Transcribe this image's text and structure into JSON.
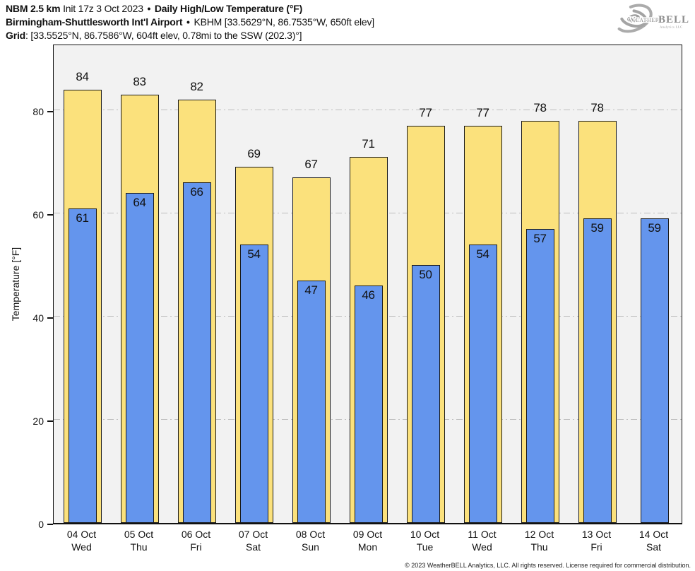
{
  "header": {
    "line1_bold1": "NBM 2.5 km",
    "line1_regular": "Init 17z 3 Oct 2023",
    "line1_sep": "•",
    "line1_bold2": "Daily High/Low Temperature (°F)",
    "line2_bold": "Birmingham-Shuttlesworth Int'l Airport",
    "line2_sep": "•",
    "line2_regular": "KBHM [33.5629°N, 86.7535°W, 650ft elev]",
    "line3_bold": "Grid",
    "line3_regular": ": [33.5525°N, 86.7586°W, 604ft elev, 0.78mi to the SSW (202.3)°]"
  },
  "logo": {
    "brand_prefix": "Weather",
    "brand_suffix": "BELL",
    "brand_sub": "Analytics LLC"
  },
  "footer": {
    "copyright": "© 2023 WeatherBELL Analytics, LLC. All rights reserved. License required for commercial distribution."
  },
  "chart_data": {
    "type": "bar",
    "title": "NBM 2.5 km Daily High/Low Temperature (°F) — Birmingham-Shuttlesworth Int'l Airport (KBHM)",
    "xlabel": "",
    "ylabel": "Temperature [°F]",
    "ylim": [
      0,
      93
    ],
    "yticks": [
      0,
      20,
      40,
      60,
      80
    ],
    "grid": "horizontal dash-dot gridlines at 20, 40, 60, 80",
    "legend_position": "none",
    "plot_background": "#f2f2f2",
    "categories": [
      {
        "date": "04 Oct",
        "day": "Wed"
      },
      {
        "date": "05 Oct",
        "day": "Thu"
      },
      {
        "date": "06 Oct",
        "day": "Fri"
      },
      {
        "date": "07 Oct",
        "day": "Sat"
      },
      {
        "date": "08 Oct",
        "day": "Sun"
      },
      {
        "date": "09 Oct",
        "day": "Mon"
      },
      {
        "date": "10 Oct",
        "day": "Tue"
      },
      {
        "date": "11 Oct",
        "day": "Wed"
      },
      {
        "date": "12 Oct",
        "day": "Thu"
      },
      {
        "date": "13 Oct",
        "day": "Fri"
      },
      {
        "date": "14 Oct",
        "day": "Sat"
      }
    ],
    "series": [
      {
        "name": "Daily High",
        "color": "#fbe17c",
        "values": [
          84,
          83,
          82,
          69,
          67,
          71,
          77,
          77,
          78,
          78,
          null
        ]
      },
      {
        "name": "Daily Low",
        "color": "#6495ed",
        "values": [
          61,
          64,
          66,
          54,
          47,
          46,
          50,
          54,
          57,
          59,
          59
        ]
      }
    ]
  }
}
